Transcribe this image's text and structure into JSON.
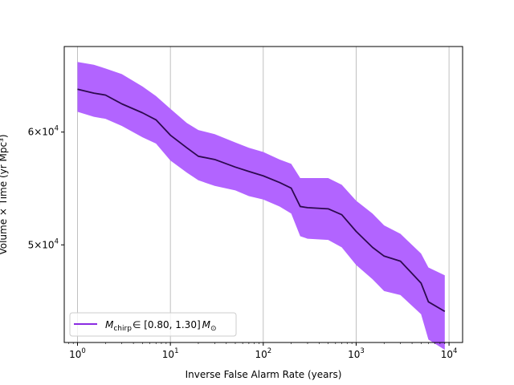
{
  "chart_data": {
    "type": "line",
    "title": "",
    "xlabel": "Inverse False Alarm Rate (years)",
    "ylabel": "Volume × Time (yr Mpc³)",
    "xscale": "log",
    "yscale": "log",
    "xlim": [
      0.72,
      14000
    ],
    "ylim": [
      42700,
      68900
    ],
    "grid": "x-major",
    "legend_position": "lower-left",
    "x_ticks": [
      {
        "value": 1,
        "base": "10",
        "exp": "0"
      },
      {
        "value": 10,
        "base": "10",
        "exp": "1"
      },
      {
        "value": 100,
        "base": "10",
        "exp": "2"
      },
      {
        "value": 1000,
        "base": "10",
        "exp": "3"
      },
      {
        "value": 10000,
        "base": "10",
        "exp": "4"
      }
    ],
    "y_ticks": [
      {
        "value": 50000,
        "coef": "5",
        "base": "10",
        "exp": "4"
      },
      {
        "value": 60000,
        "coef": "6",
        "base": "10",
        "exp": "4"
      }
    ],
    "series": [
      {
        "name": "M_chirp ∈ [0.80, 1.30] M_⊙",
        "legend": {
          "m": "M",
          "sub": "chirp",
          "range": "∈ [0.80, 1.30]",
          "m2": "M",
          "sub2": "⊙"
        },
        "line_color": "#2d0a4f",
        "band_color": "#b264ff",
        "legend_color": "#8a2be2",
        "x": [
          1,
          1.5,
          2,
          3,
          5,
          7,
          10,
          15,
          20,
          30,
          50,
          70,
          100,
          150,
          200,
          250,
          300,
          500,
          700,
          1000,
          1500,
          2000,
          3000,
          5000,
          6000,
          9000
        ],
        "y": [
          64300,
          63900,
          63700,
          62800,
          61900,
          61200,
          59700,
          58500,
          57700,
          57400,
          56700,
          56300,
          55900,
          55300,
          54800,
          53200,
          53100,
          53000,
          52500,
          51100,
          49800,
          49100,
          48700,
          47000,
          45600,
          44900
        ],
        "upper": [
          67200,
          66900,
          66500,
          65900,
          64600,
          63600,
          62300,
          60900,
          60200,
          59800,
          59000,
          58500,
          58100,
          57400,
          57000,
          55700,
          55700,
          55700,
          55100,
          53700,
          52600,
          51600,
          50900,
          49300,
          48200,
          47600
        ],
        "lower": [
          62000,
          61500,
          61300,
          60600,
          59500,
          58900,
          57300,
          56200,
          55500,
          55000,
          54600,
          54100,
          53800,
          53200,
          52600,
          50700,
          50500,
          50400,
          49800,
          48400,
          47300,
          46400,
          46100,
          44700,
          42900,
          42200
        ]
      }
    ]
  }
}
